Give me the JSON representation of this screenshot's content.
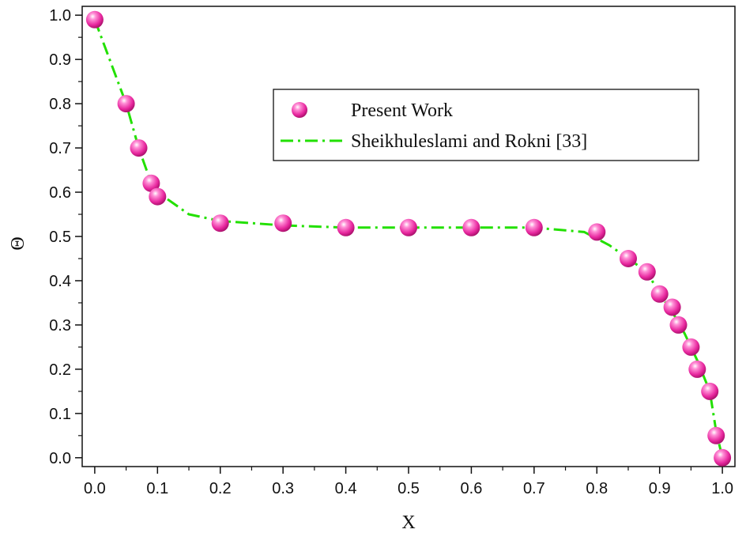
{
  "chart_data": {
    "type": "line",
    "xlabel": "X",
    "ylabel": "Θ",
    "xlim": [
      -0.02,
      1.02
    ],
    "ylim": [
      -0.02,
      1.02
    ],
    "x_ticks": [
      "0.0",
      "0.1",
      "0.2",
      "0.3",
      "0.4",
      "0.5",
      "0.6",
      "0.7",
      "0.8",
      "0.9",
      "1.0"
    ],
    "y_ticks": [
      "0.0",
      "0.1",
      "0.2",
      "0.3",
      "0.4",
      "0.5",
      "0.6",
      "0.7",
      "0.8",
      "0.9",
      "1.0"
    ],
    "legend_position": "top-right",
    "series": [
      {
        "name": "Present Work",
        "style": "markers",
        "color": "#ee3fb0",
        "x": [
          0.0,
          0.05,
          0.07,
          0.09,
          0.1,
          0.2,
          0.3,
          0.4,
          0.5,
          0.6,
          0.7,
          0.8,
          0.85,
          0.88,
          0.9,
          0.92,
          0.93,
          0.95,
          0.96,
          0.98,
          0.99,
          1.0
        ],
        "y": [
          0.99,
          0.8,
          0.7,
          0.62,
          0.59,
          0.53,
          0.53,
          0.52,
          0.52,
          0.52,
          0.52,
          0.51,
          0.45,
          0.42,
          0.37,
          0.34,
          0.3,
          0.25,
          0.2,
          0.15,
          0.05,
          0.0
        ]
      },
      {
        "name": "Sheikhuleslami and Rokni [33]",
        "style": "dash-dot line",
        "color": "#22e000",
        "x": [
          0.0,
          0.05,
          0.07,
          0.09,
          0.11,
          0.15,
          0.2,
          0.3,
          0.4,
          0.5,
          0.6,
          0.7,
          0.78,
          0.82,
          0.85,
          0.88,
          0.9,
          0.92,
          0.94,
          0.96,
          0.98,
          0.99,
          1.0
        ],
        "y": [
          0.99,
          0.8,
          0.7,
          0.62,
          0.59,
          0.55,
          0.535,
          0.525,
          0.52,
          0.52,
          0.52,
          0.52,
          0.51,
          0.48,
          0.45,
          0.42,
          0.37,
          0.33,
          0.28,
          0.22,
          0.15,
          0.06,
          0.0
        ]
      }
    ]
  }
}
